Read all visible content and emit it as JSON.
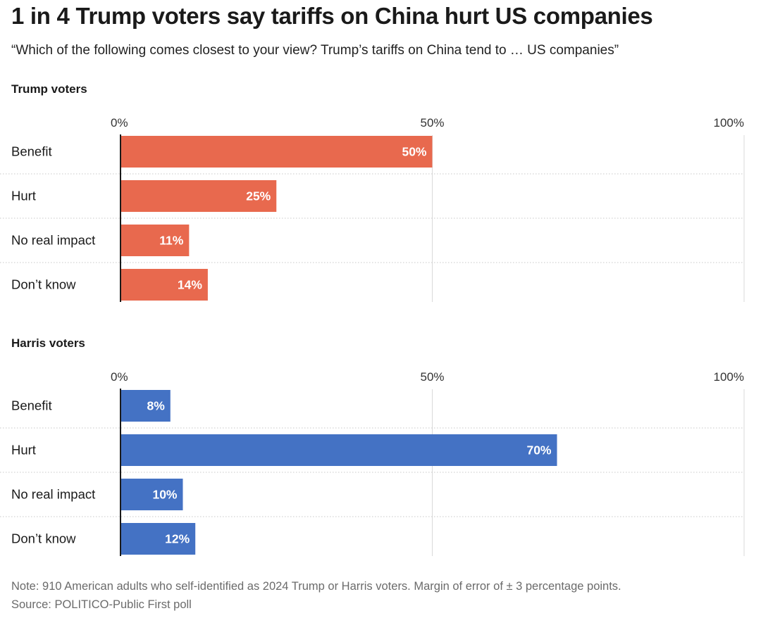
{
  "title": "1 in 4 Trump voters say tariffs on China hurt US companies",
  "subtitle": "“Which of the following comes closest to your view? Trump’s tariffs on China tend to … US companies”",
  "note": "Note: 910 American adults who self-identified as 2024 Trump or Harris voters. Margin of error of ± 3 percentage points.",
  "source": "Source: POLITICO-Public First poll",
  "colors": {
    "trump": "#e8694e",
    "harris": "#4472c4",
    "grid": "#d9d9d9",
    "axis": "#1a1a1a"
  },
  "chart_data": [
    {
      "type": "bar",
      "orientation": "horizontal",
      "title": "Trump voters",
      "categories": [
        "Benefit",
        "Hurt",
        "No real impact",
        "Don’t know"
      ],
      "values": [
        50,
        25,
        11,
        14
      ],
      "value_labels": [
        "50%",
        "25%",
        "11%",
        "14%"
      ],
      "xlim": [
        0,
        100
      ],
      "ticks": [
        0,
        50,
        100
      ],
      "tick_labels": [
        "0%",
        "50%",
        "100%"
      ],
      "grid": true,
      "color": "#e8694e"
    },
    {
      "type": "bar",
      "orientation": "horizontal",
      "title": "Harris voters",
      "categories": [
        "Benefit",
        "Hurt",
        "No real impact",
        "Don’t know"
      ],
      "values": [
        8,
        70,
        10,
        12
      ],
      "value_labels": [
        "8%",
        "70%",
        "10%",
        "12%"
      ],
      "xlim": [
        0,
        100
      ],
      "ticks": [
        0,
        50,
        100
      ],
      "tick_labels": [
        "0%",
        "50%",
        "100%"
      ],
      "grid": true,
      "color": "#4472c4"
    }
  ]
}
